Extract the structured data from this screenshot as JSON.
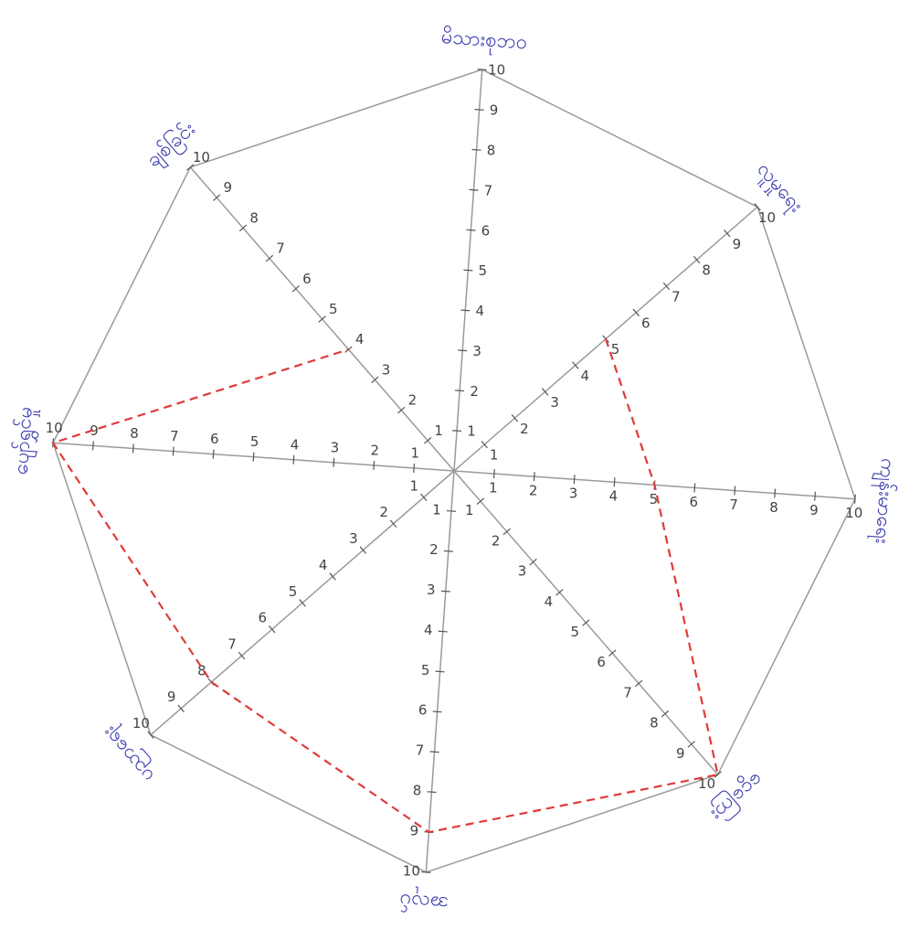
{
  "chart_data": {
    "type": "radar",
    "axes": [
      "မိသားစုဘဝ",
      "လူမှုရေး",
      "ကျန်းမာရေး",
      "ငွေကြေး",
      "အလုပ်",
      "ပညာရေး",
      "ပျော်ရွှင်မှု",
      "ချစ်ခြင်း"
    ],
    "values": [
      null,
      5,
      5,
      10,
      9,
      8,
      10,
      4
    ],
    "color": "#e03a3a",
    "rlim": [
      0,
      10
    ],
    "rticks": [
      1,
      2,
      3,
      4,
      5,
      6,
      7,
      8,
      9,
      10
    ],
    "grid_color": "#9a9a9a"
  }
}
